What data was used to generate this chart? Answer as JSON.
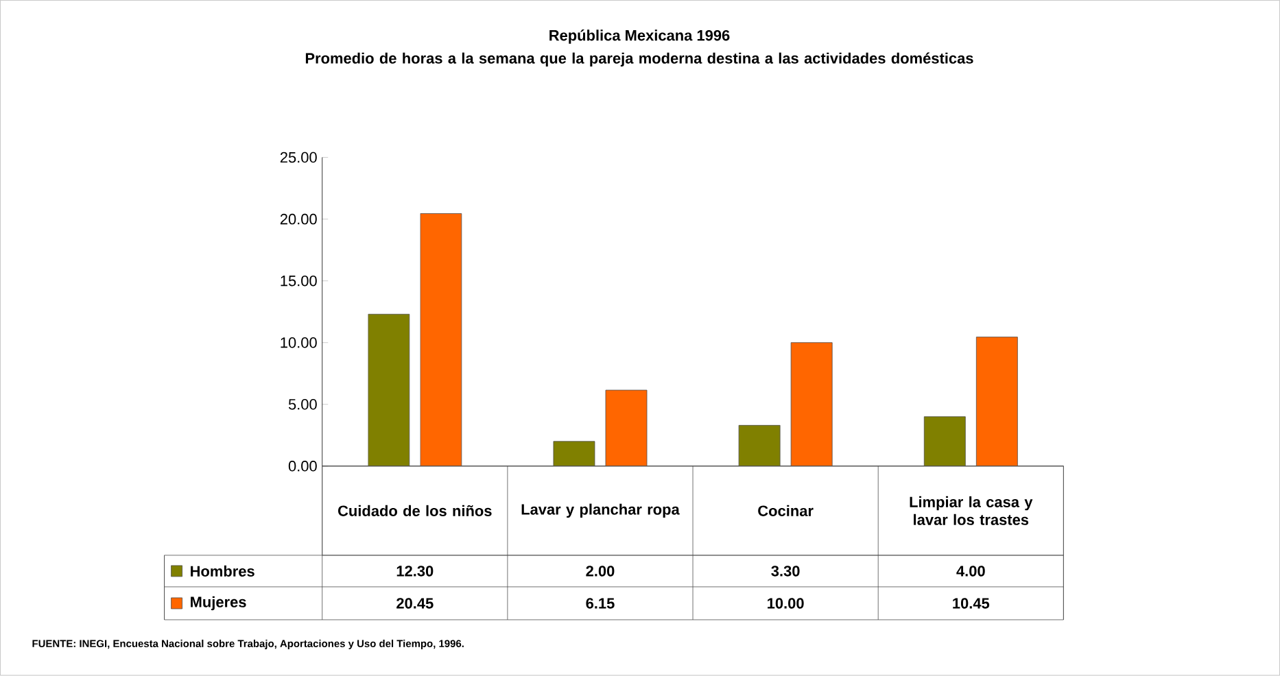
{
  "chart_data": {
    "type": "bar",
    "title": "República Mexicana 1996",
    "subtitle": "Promedio de horas a la semana que la pareja moderna destina a las actividades domésticas",
    "categories": [
      "Cuidado de los niños",
      "Lavar y planchar ropa",
      "Cocinar",
      "Limpiar la casa y lavar los trastes"
    ],
    "series": [
      {
        "name": "Hombres",
        "color": "#808000",
        "values": [
          12.3,
          2.0,
          3.3,
          4.0
        ],
        "value_labels": [
          "12.30",
          "2.00",
          "3.30",
          "4.00"
        ]
      },
      {
        "name": "Mujeres",
        "color": "#ff6600",
        "values": [
          20.45,
          6.15,
          10.0,
          10.45
        ],
        "value_labels": [
          "20.45",
          "6.15",
          "10.00",
          "10.45"
        ]
      }
    ],
    "ylim": [
      0,
      25
    ],
    "yticks": [
      {
        "value": 0,
        "label": "0.00"
      },
      {
        "value": 5,
        "label": "5.00"
      },
      {
        "value": 10,
        "label": "10.00"
      },
      {
        "value": 15,
        "label": "15.00"
      },
      {
        "value": 20,
        "label": "20.00"
      },
      {
        "value": 25,
        "label": "25.00"
      }
    ],
    "legend": "bottom",
    "annotations": [
      "FUENTE: INEGI, Encuesta Nacional sobre Trabajo, Aportaciones y Uso del Tiempo, 1996."
    ]
  }
}
